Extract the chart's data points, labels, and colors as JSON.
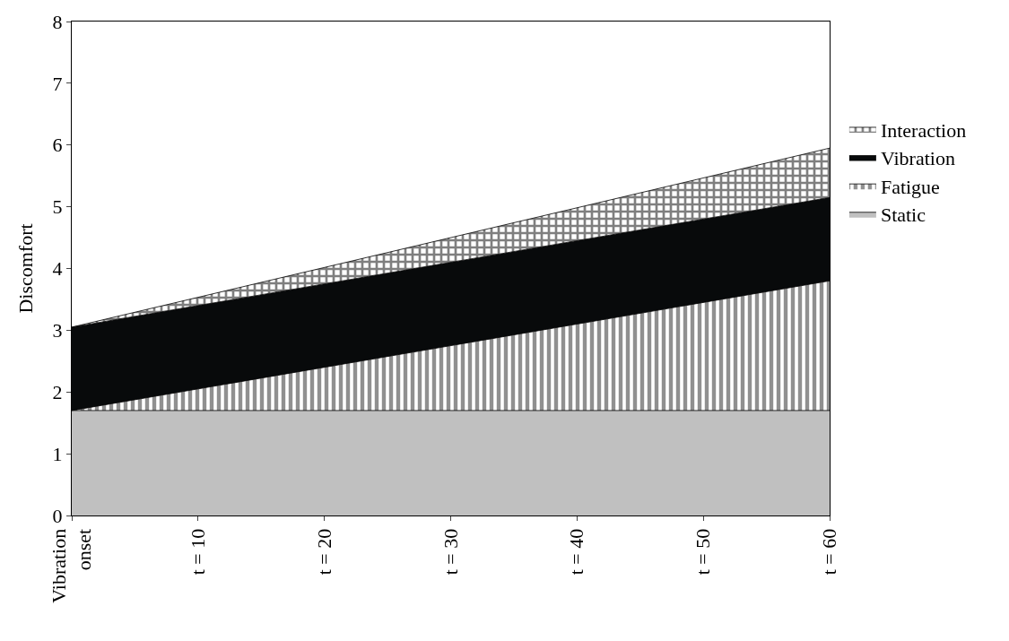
{
  "chart_data": {
    "type": "area",
    "stacked": true,
    "ylabel": "Discomfort",
    "x": [
      0,
      60
    ],
    "xlim": [
      0,
      60
    ],
    "xticks": [
      {
        "value": 0,
        "label": "Vibration\nonset"
      },
      {
        "value": 10,
        "label": "t = 10"
      },
      {
        "value": 20,
        "label": "t = 20"
      },
      {
        "value": 30,
        "label": "t = 30"
      },
      {
        "value": 40,
        "label": "t = 40"
      },
      {
        "value": 50,
        "label": "t = 50"
      },
      {
        "value": 60,
        "label": "t = 60"
      }
    ],
    "ylim": [
      0,
      8
    ],
    "yticks": [
      0,
      1,
      2,
      3,
      4,
      5,
      6,
      7,
      8
    ],
    "legend": "right",
    "series": [
      {
        "name": "Static",
        "color": "#c0c0c0",
        "values": [
          1.7,
          1.7
        ]
      },
      {
        "name": "Fatigue",
        "color": "#222222",
        "values": [
          0,
          2.1
        ]
      },
      {
        "name": "Vibration",
        "color": "#080a0b",
        "values": [
          1.35,
          1.35
        ]
      },
      {
        "name": "Interaction",
        "color": "#000000",
        "values": [
          0,
          0.8
        ]
      }
    ]
  }
}
